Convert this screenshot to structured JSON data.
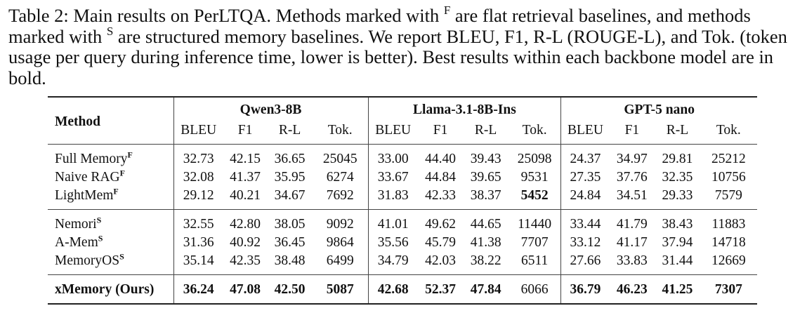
{
  "caption": {
    "label": "Table 2: Main results on PerLTQA. Methods marked with ",
    "mark_flat": "F",
    "part2": " are flat retrieval baselines, and methods marked with ",
    "mark_struct": "S",
    "part3": " are structured memory baselines. We report BLEU, F1, R-L (ROUGE-L), and Tok. (token usage per query during inference time, lower is better). Best results within each backbone model are in bold."
  },
  "table": {
    "method_header": "Method",
    "models": [
      "Qwen3-8B",
      "Llama-3.1-8B-Ins",
      "GPT-5 nano"
    ],
    "metrics": [
      "BLEU",
      "F1",
      "R-L",
      "Tok."
    ],
    "groups": [
      [
        {
          "name": "Full Memory",
          "mark": "F",
          "values": [
            "32.73",
            "42.15",
            "36.65",
            "25045",
            "33.00",
            "44.40",
            "39.43",
            "25098",
            "24.37",
            "34.97",
            "29.81",
            "25212"
          ],
          "bold": []
        },
        {
          "name": "Naive RAG",
          "mark": "F",
          "values": [
            "32.08",
            "41.37",
            "35.95",
            "6274",
            "33.67",
            "44.84",
            "39.65",
            "9531",
            "27.35",
            "37.76",
            "32.35",
            "10756"
          ],
          "bold": []
        },
        {
          "name": "LightMem",
          "mark": "F",
          "values": [
            "29.12",
            "40.21",
            "34.67",
            "7692",
            "31.83",
            "42.33",
            "38.37",
            "5452",
            "24.84",
            "34.51",
            "29.33",
            "7579"
          ],
          "bold": [
            7
          ]
        }
      ],
      [
        {
          "name": "Nemori",
          "mark": "S",
          "values": [
            "32.55",
            "42.80",
            "38.05",
            "9092",
            "41.01",
            "49.62",
            "44.65",
            "11440",
            "33.44",
            "41.79",
            "38.43",
            "11883"
          ],
          "bold": []
        },
        {
          "name": "A-Mem",
          "mark": "S",
          "values": [
            "31.36",
            "40.92",
            "36.45",
            "9864",
            "35.56",
            "45.79",
            "41.38",
            "7707",
            "33.12",
            "41.17",
            "37.94",
            "14718"
          ],
          "bold": []
        },
        {
          "name": "MemoryOS",
          "mark": "S",
          "values": [
            "35.14",
            "42.35",
            "38.48",
            "6499",
            "34.79",
            "42.03",
            "38.22",
            "6511",
            "27.66",
            "33.83",
            "31.44",
            "12669"
          ],
          "bold": []
        }
      ],
      [
        {
          "name": "xMemory (Ours)",
          "mark": "",
          "values": [
            "36.24",
            "47.08",
            "42.50",
            "5087",
            "42.68",
            "52.37",
            "47.84",
            "6066",
            "36.79",
            "46.23",
            "41.25",
            "7307"
          ],
          "bold": [
            0,
            1,
            2,
            3,
            4,
            5,
            6,
            8,
            9,
            10,
            11
          ],
          "bold_name": true
        }
      ]
    ]
  }
}
